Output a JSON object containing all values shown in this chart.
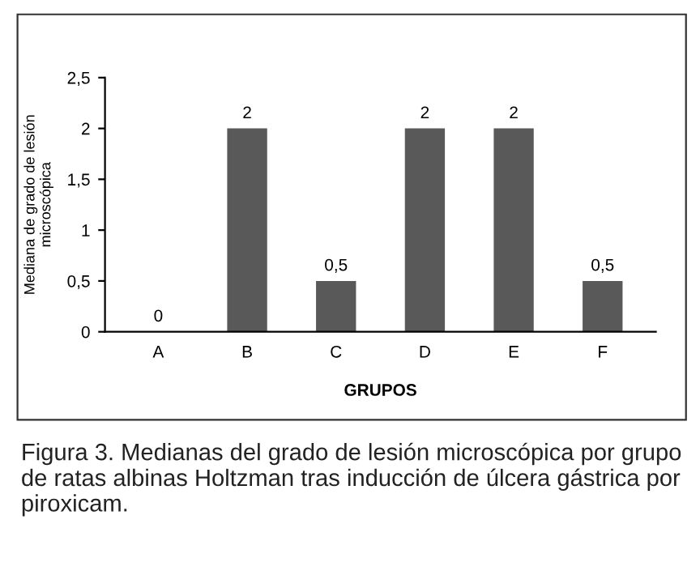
{
  "chart_data": {
    "type": "bar",
    "xlabel": "GRUPOS",
    "ylabel": "Mediana de grado de lesión\nmicroscópica",
    "categories": [
      "A",
      "B",
      "C",
      "D",
      "E",
      "F"
    ],
    "values": [
      0,
      2,
      0.5,
      2,
      2,
      0.5
    ],
    "value_labels": [
      "0",
      "2",
      "0,5",
      "2",
      "2",
      "0,5"
    ],
    "color": "#595959",
    "ylim": [
      0,
      2.5
    ],
    "yticks": [
      0,
      {
        "value": 0.5,
        "label": "0,5"
      },
      1,
      {
        "value": 1.5,
        "label": "1,5"
      },
      2,
      {
        "value": 2.5,
        "label": "2,5"
      }
    ],
    "grid": false,
    "legend": false,
    "annotations": [
      "Figura 3. Medianas del grado de lesión microscópica por grupo de ratas albinas Holtzman tras inducción de úlcera gástrica por piroxicam."
    ]
  }
}
